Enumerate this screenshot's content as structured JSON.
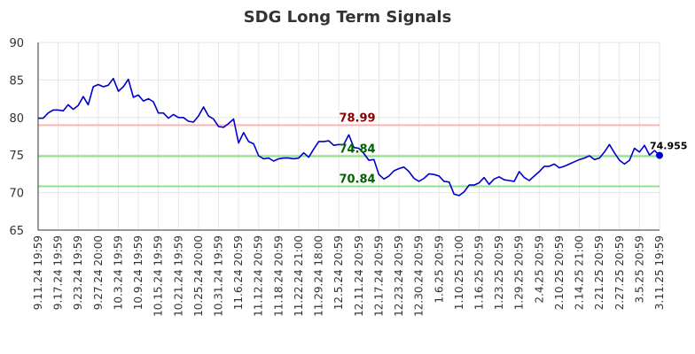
{
  "chart_data": {
    "type": "line",
    "title": "SDG Long Term Signals",
    "xlabel": "",
    "ylabel": "",
    "ylim": [
      65,
      90
    ],
    "yticks": [
      65,
      70,
      75,
      80,
      85,
      90
    ],
    "grid": true,
    "x_tick_labels": [
      "9.11.24 19:59",
      "9.17.24 19:59",
      "9.23.24 19:59",
      "9.27.24 20:00",
      "10.3.24 19:59",
      "10.9.24 19:59",
      "10.15.24 19:59",
      "10.21.24 19:59",
      "10.25.24 20:00",
      "10.31.24 19:59",
      "11.6.24 20:59",
      "11.12.24 20:59",
      "11.18.24 20:59",
      "11.22.24 21:00",
      "11.29.24 18:00",
      "12.5.24 20:59",
      "12.11.24 20:59",
      "12.17.24 20:59",
      "12.23.24 20:59",
      "12.30.24 20:59",
      "1.6.25 20:59",
      "1.10.25 21:00",
      "1.16.25 20:59",
      "1.23.25 20:59",
      "1.29.25 20:59",
      "2.4.25 20:59",
      "2.10.25 20:59",
      "2.14.25 21:00",
      "2.21.25 20:59",
      "2.27.25 20:59",
      "3.5.25 20:59",
      "3.11.25 19:59"
    ],
    "reference_lines": [
      {
        "value": 78.99,
        "label": "78.99",
        "color": "#ffb3b3",
        "label_color": "#8b0000"
      },
      {
        "value": 74.84,
        "label": "74.84",
        "color": "#90e090",
        "label_color": "#006400"
      },
      {
        "value": 70.84,
        "label": "70.84",
        "color": "#90e090",
        "label_color": "#006400"
      }
    ],
    "series": [
      {
        "color": "#0000cc",
        "values": [
          79.9,
          79.9,
          80.6,
          81.0,
          81.0,
          80.9,
          81.7,
          81.1,
          81.6,
          82.8,
          81.7,
          84.1,
          84.4,
          84.1,
          84.3,
          85.2,
          83.5,
          84.1,
          85.1,
          82.7,
          83.0,
          82.2,
          82.5,
          82.1,
          80.6,
          80.6,
          79.9,
          80.4,
          80.0,
          80.0,
          79.5,
          79.4,
          80.2,
          81.4,
          80.2,
          79.8,
          78.8,
          78.7,
          79.2,
          79.8,
          76.6,
          78.0,
          76.8,
          76.5,
          74.9,
          74.5,
          74.6,
          74.2,
          74.5,
          74.6,
          74.6,
          74.5,
          74.6,
          75.3,
          74.7,
          75.8,
          76.8,
          76.8,
          76.9,
          76.3,
          76.4,
          76.4,
          77.7,
          76.0,
          75.9,
          75.2,
          74.3,
          74.4,
          72.4,
          71.8,
          72.2,
          72.9,
          73.2,
          73.4,
          72.8,
          71.9,
          71.5,
          71.9,
          72.5,
          72.4,
          72.2,
          71.5,
          71.4,
          69.8,
          69.6,
          70.1,
          71.0,
          71.0,
          71.3,
          72.0,
          71.1,
          71.8,
          72.1,
          71.7,
          71.6,
          71.5,
          72.8,
          72.0,
          71.6,
          72.2,
          72.8,
          73.5,
          73.5,
          73.8,
          73.3,
          73.5,
          73.8,
          74.1,
          74.4,
          74.6,
          74.9,
          74.4,
          74.6,
          75.4,
          76.4,
          75.3,
          74.3,
          73.8,
          74.3,
          75.9,
          75.4,
          76.3,
          75.0,
          75.6,
          74.955
        ]
      }
    ],
    "last_value": 74.955,
    "last_label": "74.955"
  }
}
